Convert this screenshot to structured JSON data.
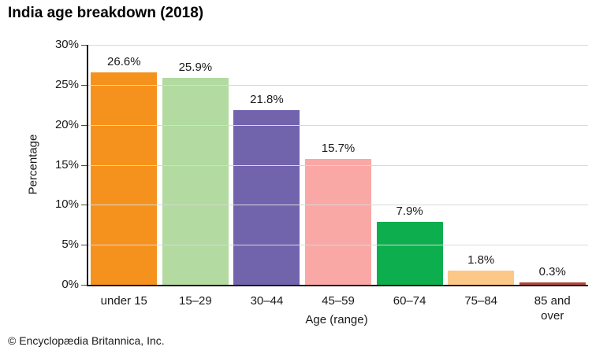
{
  "chart_data": {
    "type": "bar",
    "title": "India age breakdown (2018)",
    "xlabel": "Age (range)",
    "ylabel": "Percentage",
    "ylim": [
      0,
      30
    ],
    "ytick_step": 5,
    "ytick_suffix": "%",
    "grid": true,
    "legend": "none",
    "categories": [
      "under 15",
      "15–29",
      "30–44",
      "45–59",
      "60–74",
      "75–84",
      "85 and over"
    ],
    "values": [
      26.6,
      25.9,
      21.8,
      15.7,
      7.9,
      1.8,
      0.3
    ],
    "value_labels": [
      "26.6%",
      "25.9%",
      "21.8%",
      "15.7%",
      "7.9%",
      "1.8%",
      "0.3%"
    ],
    "bar_colors": [
      "#f5921e",
      "#b2daa1",
      "#7263ad",
      "#f9a8a6",
      "#0cae4e",
      "#fbc888",
      "#b2453e"
    ]
  },
  "footer": {
    "copyright": "© Encyclopædia Britannica, Inc."
  },
  "colors": {
    "background": "#ffffff",
    "axis": "#1a1a1a",
    "gridline": "#d9d9d9",
    "text": "#1a1a1a"
  }
}
